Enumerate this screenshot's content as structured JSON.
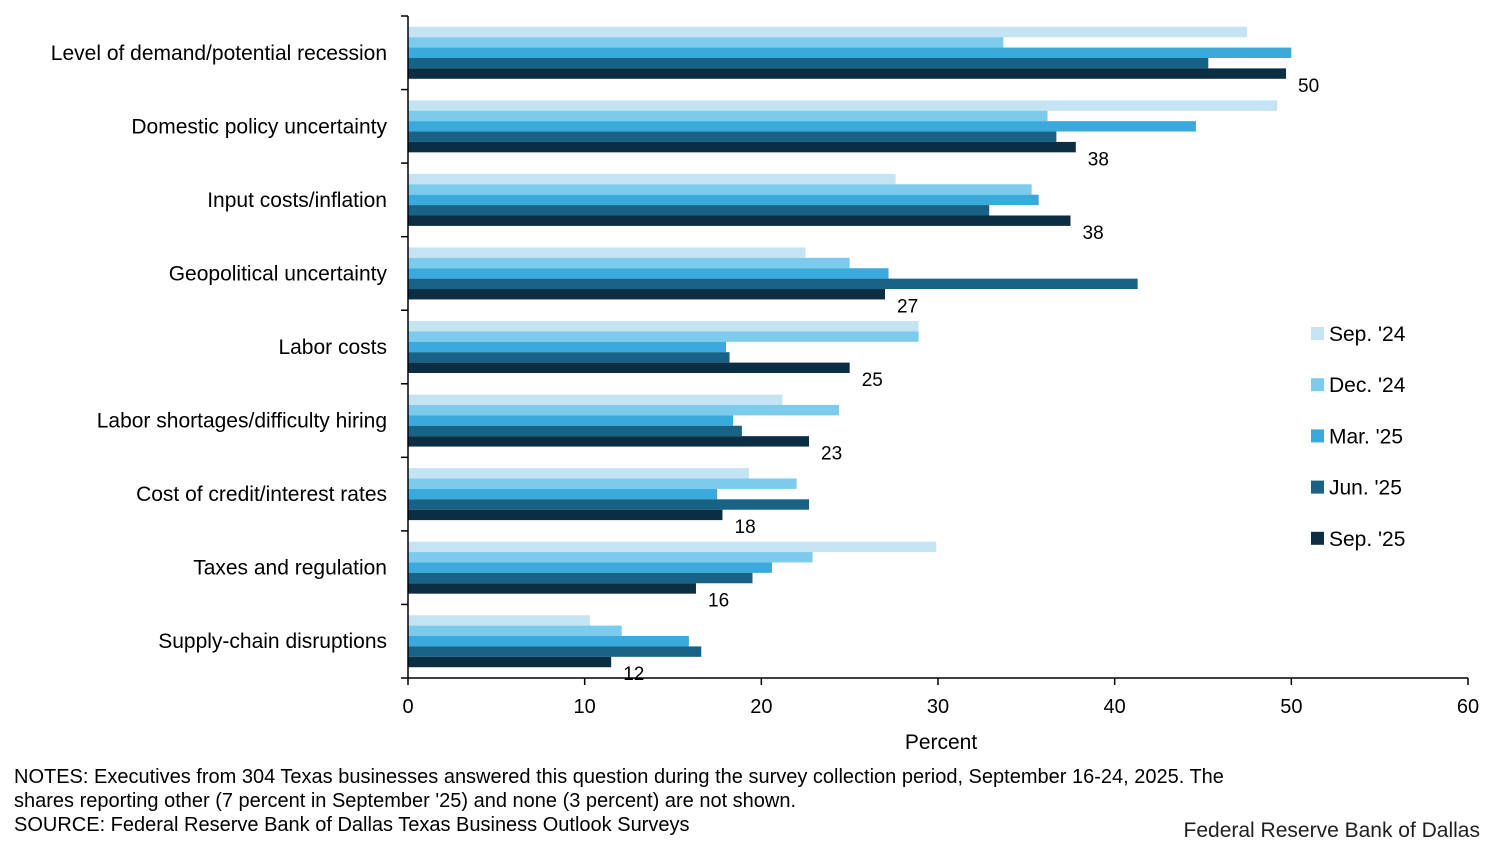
{
  "chart_data": {
    "type": "bar",
    "orientation": "horizontal",
    "categories": [
      "Level of demand/potential recession",
      "Domestic policy uncertainty",
      "Input costs/inflation",
      "Geopolitical uncertainty",
      "Labor costs",
      "Labor shortages/difficulty hiring",
      "Cost of credit/interest rates",
      "Taxes and regulation",
      "Supply-chain disruptions"
    ],
    "series": [
      {
        "name": "Sep. '24",
        "color": "#c5e4f3",
        "values": [
          47.5,
          49.2,
          27.6,
          22.5,
          28.9,
          21.2,
          19.3,
          29.9,
          10.3
        ]
      },
      {
        "name": "Dec. '24",
        "color": "#7ccbec",
        "values": [
          33.7,
          36.2,
          35.3,
          25.0,
          28.9,
          24.4,
          22.0,
          22.9,
          12.1
        ]
      },
      {
        "name": "Mar. '25",
        "color": "#3aa9dc",
        "values": [
          50.0,
          44.6,
          35.7,
          27.2,
          18.0,
          18.4,
          17.5,
          20.6,
          15.9
        ]
      },
      {
        "name": "Jun. '25",
        "color": "#186285",
        "values": [
          45.3,
          36.7,
          32.9,
          41.3,
          18.2,
          18.9,
          22.7,
          19.5,
          16.6
        ]
      },
      {
        "name": "Sep. '25",
        "color": "#0b2e42",
        "values": [
          49.7,
          37.8,
          37.5,
          27.0,
          25.0,
          22.7,
          17.8,
          16.3,
          11.5
        ]
      }
    ],
    "data_labels": [
      "50",
      "38",
      "38",
      "27",
      "25",
      "23",
      "18",
      "16",
      "12"
    ],
    "xlim": [
      0,
      60
    ],
    "xticks": [
      0,
      10,
      20,
      30,
      40,
      50,
      60
    ],
    "xlabel": "Percent",
    "ylabel": "",
    "title": "",
    "legend": "right",
    "grid": false
  },
  "notes": {
    "line1": "NOTES: Executives from 304 Texas businesses answered this question during the survey collection period, September 16-24, 2025. The",
    "line2": "shares reporting other (7 percent in September '25) and none (3 percent) are not shown.",
    "source": "SOURCE: Federal Reserve Bank of Dallas Texas Business Outlook Surveys"
  },
  "credit": "Federal Reserve Bank of Dallas"
}
